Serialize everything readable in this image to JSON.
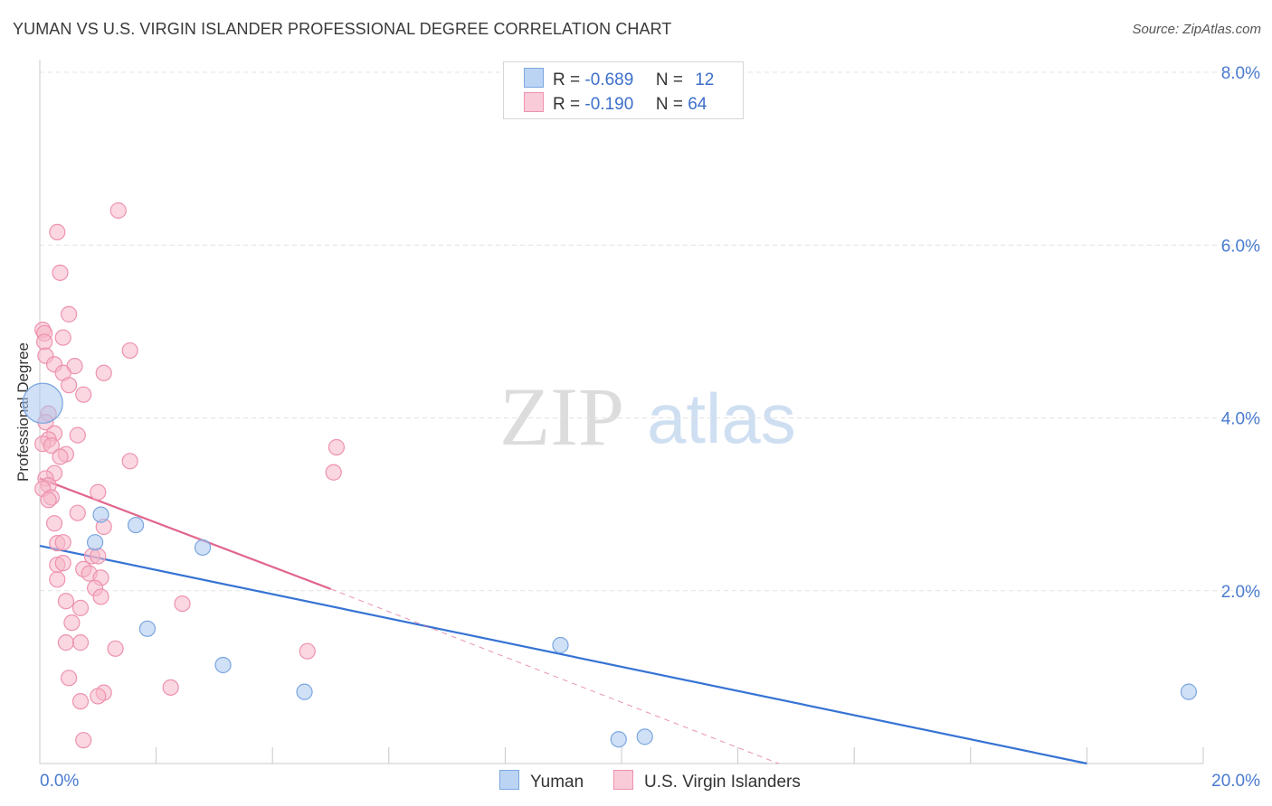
{
  "title": "YUMAN VS U.S. VIRGIN ISLANDER PROFESSIONAL DEGREE CORRELATION CHART",
  "source": "Source: ZipAtlas.com",
  "watermark": {
    "zip": "ZIP",
    "atlas": "atlas"
  },
  "legend": {
    "series": [
      {
        "r_label": "R =",
        "r_value": "-0.689",
        "n_label": "N =",
        "n_value": "12"
      },
      {
        "r_label": "R =",
        "r_value": "-0.190",
        "n_label": "N =",
        "n_value": "64"
      }
    ]
  },
  "bottom_legend": [
    "Yuman",
    "U.S. Virgin Islanders"
  ],
  "colors": {
    "yuman_fill": "#a9c6ef",
    "yuman_stroke": "#7aa6e0",
    "yuman_line": "#3673d4",
    "usvi_fill": "#f6b6c9",
    "usvi_stroke": "#ee92ae",
    "usvi_line": "#e0668c",
    "tick_label": "#4a7bd0",
    "grid": "#e3e3e3"
  },
  "chart_data": {
    "type": "scatter",
    "title": "YUMAN VS U.S. VIRGIN ISLANDER PROFESSIONAL DEGREE CORRELATION CHART",
    "xlabel": "",
    "ylabel": "Professional Degree",
    "xlim": [
      0,
      20
    ],
    "ylim": [
      0,
      8
    ],
    "x_tick_labels": [
      "0.0%",
      "20.0%"
    ],
    "y_tick_labels": [
      "2.0%",
      "4.0%",
      "6.0%",
      "8.0%"
    ],
    "y_ticks": [
      2,
      4,
      6,
      8
    ],
    "grid": true,
    "series": [
      {
        "name": "Yuman",
        "r": -0.689,
        "n": 12,
        "points": [
          {
            "x": 0.05,
            "y": 4.17,
            "big": true
          },
          {
            "x": 0.95,
            "y": 2.56
          },
          {
            "x": 1.05,
            "y": 2.88
          },
          {
            "x": 1.65,
            "y": 2.76
          },
          {
            "x": 2.8,
            "y": 2.5
          },
          {
            "x": 1.85,
            "y": 1.56
          },
          {
            "x": 3.15,
            "y": 1.14
          },
          {
            "x": 4.55,
            "y": 0.83
          },
          {
            "x": 8.95,
            "y": 1.37
          },
          {
            "x": 9.95,
            "y": 0.28
          },
          {
            "x": 10.4,
            "y": 0.31
          },
          {
            "x": 19.75,
            "y": 0.83
          }
        ],
        "trend": {
          "x0": 0,
          "y0": 2.52,
          "x1": 18.0,
          "y1": 0.0,
          "dashed_to": null
        }
      },
      {
        "name": "U.S. Virgin Islanders",
        "r": -0.19,
        "n": 64,
        "points": [
          {
            "x": 1.35,
            "y": 6.4
          },
          {
            "x": 0.3,
            "y": 6.15
          },
          {
            "x": 0.35,
            "y": 5.68
          },
          {
            "x": 0.5,
            "y": 5.2
          },
          {
            "x": 0.05,
            "y": 5.02
          },
          {
            "x": 0.08,
            "y": 4.98
          },
          {
            "x": 0.4,
            "y": 4.93
          },
          {
            "x": 0.08,
            "y": 4.88
          },
          {
            "x": 1.55,
            "y": 4.78
          },
          {
            "x": 0.1,
            "y": 4.72
          },
          {
            "x": 0.25,
            "y": 4.62
          },
          {
            "x": 0.6,
            "y": 4.6
          },
          {
            "x": 0.4,
            "y": 4.52
          },
          {
            "x": 1.1,
            "y": 4.52
          },
          {
            "x": 0.5,
            "y": 4.38
          },
          {
            "x": 0.75,
            "y": 4.27
          },
          {
            "x": 0.15,
            "y": 4.05
          },
          {
            "x": 0.1,
            "y": 3.95
          },
          {
            "x": 0.25,
            "y": 3.82
          },
          {
            "x": 0.65,
            "y": 3.8
          },
          {
            "x": 0.15,
            "y": 3.75
          },
          {
            "x": 0.05,
            "y": 3.7
          },
          {
            "x": 0.2,
            "y": 3.68
          },
          {
            "x": 0.45,
            "y": 3.58
          },
          {
            "x": 0.35,
            "y": 3.55
          },
          {
            "x": 5.1,
            "y": 3.66
          },
          {
            "x": 1.55,
            "y": 3.5
          },
          {
            "x": 5.05,
            "y": 3.37
          },
          {
            "x": 0.25,
            "y": 3.36
          },
          {
            "x": 0.1,
            "y": 3.3
          },
          {
            "x": 0.15,
            "y": 3.22
          },
          {
            "x": 0.05,
            "y": 3.18
          },
          {
            "x": 1.0,
            "y": 3.14
          },
          {
            "x": 0.2,
            "y": 3.08
          },
          {
            "x": 0.15,
            "y": 3.05
          },
          {
            "x": 0.65,
            "y": 2.9
          },
          {
            "x": 0.25,
            "y": 2.78
          },
          {
            "x": 1.1,
            "y": 2.74
          },
          {
            "x": 0.3,
            "y": 2.55
          },
          {
            "x": 0.4,
            "y": 2.56
          },
          {
            "x": 0.9,
            "y": 2.4
          },
          {
            "x": 1.0,
            "y": 2.4
          },
          {
            "x": 0.3,
            "y": 2.3
          },
          {
            "x": 0.4,
            "y": 2.32
          },
          {
            "x": 0.75,
            "y": 2.25
          },
          {
            "x": 0.85,
            "y": 2.2
          },
          {
            "x": 1.05,
            "y": 2.15
          },
          {
            "x": 0.3,
            "y": 2.13
          },
          {
            "x": 0.95,
            "y": 2.03
          },
          {
            "x": 1.05,
            "y": 1.93
          },
          {
            "x": 0.45,
            "y": 1.88
          },
          {
            "x": 2.45,
            "y": 1.85
          },
          {
            "x": 0.7,
            "y": 1.8
          },
          {
            "x": 0.55,
            "y": 1.63
          },
          {
            "x": 0.45,
            "y": 1.4
          },
          {
            "x": 0.7,
            "y": 1.4
          },
          {
            "x": 1.3,
            "y": 1.33
          },
          {
            "x": 4.6,
            "y": 1.3
          },
          {
            "x": 0.5,
            "y": 0.99
          },
          {
            "x": 2.25,
            "y": 0.88
          },
          {
            "x": 1.1,
            "y": 0.82
          },
          {
            "x": 1.0,
            "y": 0.78
          },
          {
            "x": 0.7,
            "y": 0.72
          },
          {
            "x": 0.75,
            "y": 0.27
          }
        ],
        "trend": {
          "x0": 0,
          "y0": 3.3,
          "x1": 5.0,
          "y1": 2.02,
          "dashed_to": {
            "x": 12.7,
            "y": 0.0
          }
        }
      }
    ]
  }
}
